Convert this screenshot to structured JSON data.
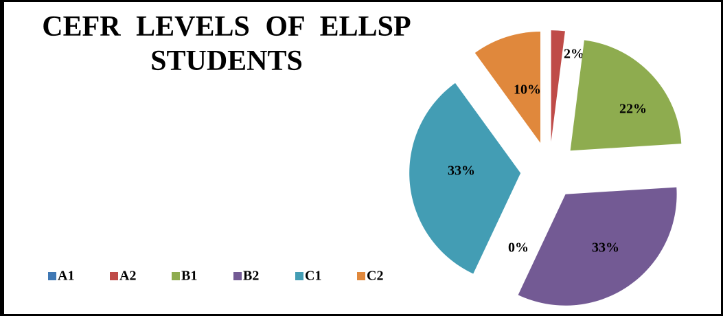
{
  "chart_data": {
    "type": "pie",
    "title": "CEFR LEVELS OF ELLSP STUDENTS",
    "categories": [
      "A1",
      "A2",
      "B1",
      "B2",
      "C1",
      "C2"
    ],
    "values": [
      0,
      2,
      22,
      33,
      33,
      10
    ],
    "value_labels": [
      "0%",
      "2%",
      "22%",
      "33%",
      "33%",
      "10%"
    ],
    "colors": [
      "#3f78b4",
      "#bf4b48",
      "#8eac4f",
      "#735a94",
      "#439db4",
      "#e0883c"
    ],
    "legend": "bottom-left"
  }
}
